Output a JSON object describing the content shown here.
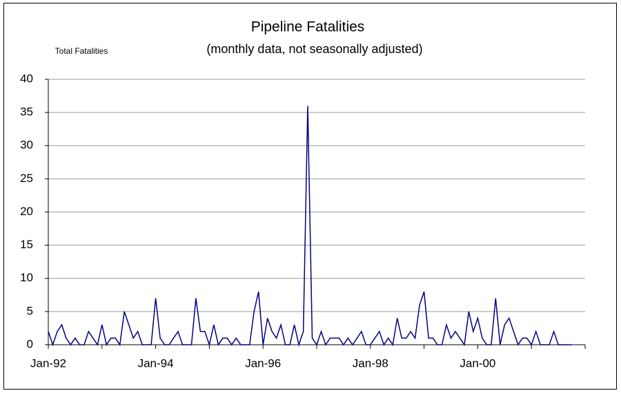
{
  "chart_data": {
    "type": "line",
    "title": "Pipeline Fatalities",
    "subtitle": "(monthly data, not seasonally adjusted)",
    "y_label": "Total Fatalities",
    "categories": [
      "Jan-92",
      null,
      null,
      null,
      null,
      null,
      null,
      null,
      null,
      null,
      null,
      null,
      null,
      null,
      null,
      null,
      null,
      null,
      null,
      null,
      null,
      null,
      null,
      null,
      "Jan-94",
      null,
      null,
      null,
      null,
      null,
      null,
      null,
      null,
      null,
      null,
      null,
      null,
      null,
      null,
      null,
      null,
      null,
      null,
      null,
      null,
      null,
      null,
      null,
      "Jan-96",
      null,
      null,
      null,
      null,
      null,
      null,
      null,
      null,
      null,
      null,
      null,
      null,
      null,
      null,
      null,
      null,
      null,
      null,
      null,
      null,
      null,
      null,
      null,
      "Jan-98",
      null,
      null,
      null,
      null,
      null,
      null,
      null,
      null,
      null,
      null,
      null,
      null,
      null,
      null,
      null,
      null,
      null,
      null,
      null,
      null,
      null,
      null,
      null,
      "Jan-00",
      null,
      null,
      null,
      null,
      null,
      null,
      null,
      null,
      null,
      null,
      null,
      null,
      null,
      null,
      null,
      null,
      null,
      null,
      null,
      null,
      null,
      null,
      null
    ],
    "series": [
      {
        "name": "Total Fatalities",
        "color": "#000080",
        "values": [
          2,
          0,
          2,
          3,
          1,
          0,
          1,
          0,
          0,
          2,
          1,
          0,
          3,
          0,
          1,
          1,
          0,
          5,
          3,
          1,
          2,
          0,
          0,
          0,
          7,
          1,
          0,
          0,
          1,
          2,
          0,
          0,
          0,
          7,
          2,
          2,
          0,
          3,
          0,
          1,
          1,
          0,
          1,
          0,
          0,
          0,
          5,
          8,
          0,
          4,
          2,
          1,
          3,
          0,
          0,
          3,
          0,
          2,
          36,
          1,
          0,
          2,
          0,
          1,
          1,
          1,
          0,
          1,
          0,
          1,
          2,
          0,
          0,
          1,
          2,
          0,
          1,
          0,
          4,
          1,
          1,
          2,
          1,
          6,
          8,
          1,
          1,
          0,
          0,
          3,
          1,
          2,
          1,
          0,
          5,
          2,
          4,
          1,
          0,
          0,
          7,
          0,
          3,
          4,
          2,
          0,
          1,
          1,
          0,
          2,
          0,
          0,
          0,
          2,
          0,
          0,
          0,
          0,
          null,
          null
        ]
      }
    ],
    "ylim": [
      0,
      40
    ],
    "yticks": [
      0,
      5,
      10,
      15,
      20,
      25,
      30,
      35,
      40
    ],
    "grid": true
  }
}
